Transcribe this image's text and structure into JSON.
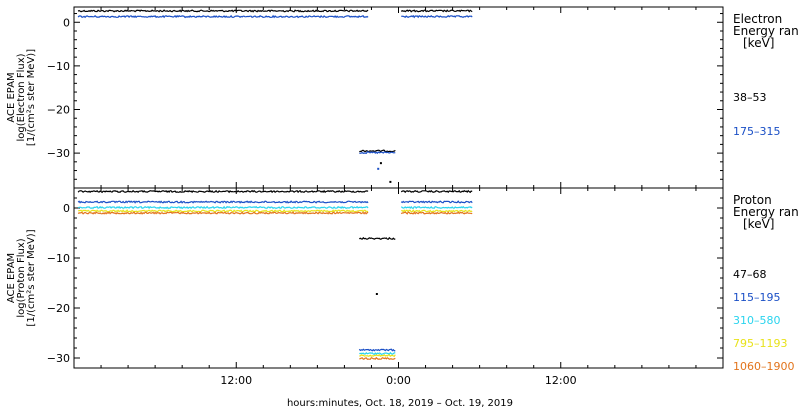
{
  "chart_data": [
    {
      "type": "scatter",
      "ylabel_lines": [
        "ACE EPAM",
        "log(Electron Flux)",
        "[1/(cm²s ster MeV)]"
      ],
      "y_ticks": [
        {
          "value": 0,
          "label": "0"
        },
        {
          "value": -10,
          "label": "−10"
        },
        {
          "value": -20,
          "label": "−20"
        },
        {
          "value": -30,
          "label": "−30"
        }
      ],
      "ylim": [
        -38,
        3.5
      ],
      "legend_title_lines": [
        "Electron",
        "Energy ran",
        "[keV]"
      ],
      "series": [
        {
          "name": "38–53",
          "color": "#000000",
          "segments": [
            {
              "x": [
                -23.7,
                -2.2
              ],
              "y": 2.6
            },
            {
              "x": [
                -2.9,
                -0.2
              ],
              "y": -29.5
            },
            {
              "x": [
                0.2,
                5.5
              ],
              "y": 2.6
            }
          ],
          "points": [
            {
              "x": -1.3,
              "y": -32.3
            },
            {
              "x": -0.6,
              "y": -36.6
            }
          ]
        },
        {
          "name": "175–315",
          "color": "#1a4fc6",
          "segments": [
            {
              "x": [
                -23.7,
                -2.2
              ],
              "y": 1.3
            },
            {
              "x": [
                -2.9,
                -0.2
              ],
              "y": -29.9
            },
            {
              "x": [
                0.2,
                5.5
              ],
              "y": 1.3
            }
          ],
          "points": [
            {
              "x": -1.5,
              "y": -33.6
            }
          ]
        }
      ]
    },
    {
      "type": "scatter",
      "ylabel_lines": [
        "ACE EPAM",
        "log(Proton Flux)",
        "[1/(cm²s ster MeV)]"
      ],
      "y_ticks": [
        {
          "value": 0,
          "label": "0"
        },
        {
          "value": -10,
          "label": "−10"
        },
        {
          "value": -20,
          "label": "−20"
        },
        {
          "value": -30,
          "label": "−30"
        }
      ],
      "ylim": [
        -32,
        4
      ],
      "legend_title_lines": [
        "Proton",
        "Energy ran",
        "[keV]"
      ],
      "series": [
        {
          "name": "47–68",
          "color": "#000000",
          "segments": [
            {
              "x": [
                -23.7,
                -2.2
              ],
              "y": 3.3
            },
            {
              "x": [
                -2.9,
                -0.2
              ],
              "y": -6.1
            },
            {
              "x": [
                0.2,
                5.5
              ],
              "y": 3.3
            }
          ],
          "points": [
            {
              "x": -1.6,
              "y": -17.2
            }
          ]
        },
        {
          "name": "115–195",
          "color": "#1a4fc6",
          "segments": [
            {
              "x": [
                -23.7,
                -2.2
              ],
              "y": 1.2
            },
            {
              "x": [
                -2.9,
                -0.2
              ],
              "y": -28.4
            },
            {
              "x": [
                0.2,
                5.5
              ],
              "y": 1.2
            }
          ],
          "points": []
        },
        {
          "name": "310–580",
          "color": "#2ad4ee",
          "segments": [
            {
              "x": [
                -23.7,
                -2.2
              ],
              "y": 0.1
            },
            {
              "x": [
                -2.9,
                -0.2
              ],
              "y": -29.1
            },
            {
              "x": [
                0.2,
                5.5
              ],
              "y": 0.1
            }
          ],
          "points": []
        },
        {
          "name": "795–1193",
          "color": "#e8e21a",
          "segments": [
            {
              "x": [
                -23.7,
                -2.2
              ],
              "y": -0.6
            },
            {
              "x": [
                -2.9,
                -0.2
              ],
              "y": -29.5
            },
            {
              "x": [
                0.2,
                5.5
              ],
              "y": -0.6
            }
          ],
          "points": []
        },
        {
          "name": "1060–1900",
          "color": "#e2741c",
          "segments": [
            {
              "x": [
                -23.7,
                -2.2
              ],
              "y": -1.0
            },
            {
              "x": [
                -2.9,
                -0.2
              ],
              "y": -30.1
            },
            {
              "x": [
                0.2,
                5.5
              ],
              "y": -1.0
            }
          ],
          "points": []
        }
      ]
    }
  ],
  "x_axis": {
    "unit": "hours relative to 0:00 Oct. 19, 2019",
    "xlim": [
      -24,
      24
    ],
    "ticks": [
      {
        "value": -12,
        "label": "12:00"
      },
      {
        "value": 0,
        "label": "0:00"
      },
      {
        "value": 12,
        "label": "12:00"
      }
    ],
    "label": "hours:minutes, Oct. 18, 2019 – Oct. 19, 2019"
  }
}
